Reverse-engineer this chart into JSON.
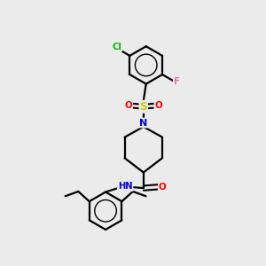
{
  "background_color": "#ebebeb",
  "bond_color": "#000000",
  "atom_colors": {
    "Cl": "#00bb00",
    "F": "#ff69b4",
    "S": "#cccc00",
    "O": "#ff0000",
    "N": "#0000ee",
    "C": "#000000"
  },
  "figsize": [
    3.0,
    3.0
  ],
  "dpi": 100
}
